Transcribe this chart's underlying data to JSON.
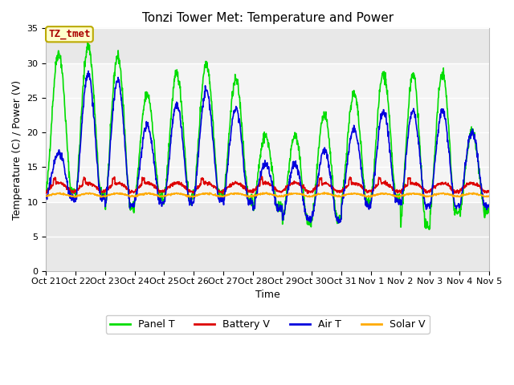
{
  "title": "Tonzi Tower Met: Temperature and Power",
  "xlabel": "Time",
  "ylabel": "Temperature (C) / Power (V)",
  "ylim": [
    0,
    35
  ],
  "yticks": [
    0,
    5,
    10,
    15,
    20,
    25,
    30,
    35
  ],
  "annotation_label": "TZ_tmet",
  "annotation_bg": "#ffffcc",
  "annotation_border": "#bbaa00",
  "annotation_text_color": "#aa0000",
  "fig_bg": "#ffffff",
  "plot_bg": "#e8e8e8",
  "band_lo": 10,
  "band_hi": 30,
  "band_color": "#f4f4f4",
  "grid_color": "#ffffff",
  "lines": {
    "panel_t": {
      "label": "Panel T",
      "color": "#00dd00",
      "lw": 1.2
    },
    "battery_v": {
      "label": "Battery V",
      "color": "#dd0000",
      "lw": 1.2
    },
    "air_t": {
      "label": "Air T",
      "color": "#0000dd",
      "lw": 1.2
    },
    "solar_v": {
      "label": "Solar V",
      "color": "#ffaa00",
      "lw": 1.2
    }
  },
  "xtick_labels": [
    "Oct 21",
    "Oct 22",
    "Oct 23",
    "Oct 24",
    "Oct 25",
    "Oct 26",
    "Oct 27",
    "Oct 28",
    "Oct 29",
    "Oct 30",
    "Oct 31",
    "Nov 1",
    "Nov 2",
    "Nov 3",
    "Nov 4",
    "Nov 5"
  ],
  "num_days": 15,
  "panel_peak": [
    31.5,
    32.5,
    31.0,
    25.5,
    28.5,
    30.0,
    27.5,
    19.5,
    19.5,
    22.5,
    25.5,
    28.5,
    28.5,
    28.5,
    20.0
  ],
  "panel_min": [
    11.5,
    11.0,
    9.2,
    10.5,
    10.5,
    11.0,
    10.5,
    9.0,
    7.0,
    7.5,
    10.0,
    10.5,
    6.5,
    8.5,
    8.5
  ],
  "air_peak": [
    17.0,
    28.5,
    27.5,
    21.0,
    24.0,
    26.0,
    23.5,
    15.5,
    15.5,
    17.5,
    20.5,
    23.0,
    23.0,
    23.0,
    20.0
  ],
  "air_min": [
    10.5,
    10.5,
    9.5,
    10.0,
    10.0,
    10.5,
    10.0,
    9.0,
    7.5,
    7.5,
    9.5,
    10.0,
    9.5,
    9.5,
    9.5
  ],
  "batt_base": 11.5,
  "batt_bump": 1.2,
  "solar_base": 10.8,
  "solar_bump": 0.4,
  "tick_fontsize": 8,
  "label_fontsize": 9,
  "title_fontsize": 11,
  "legend_fontsize": 9
}
